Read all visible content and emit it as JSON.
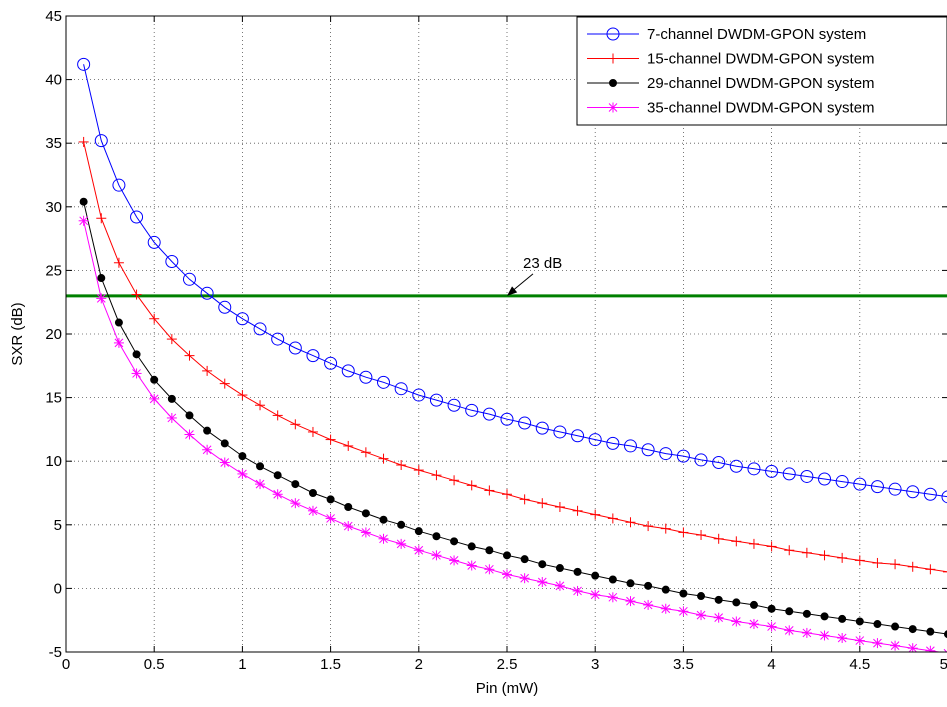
{
  "chart_data": {
    "type": "line",
    "title": "",
    "xlabel": "Pin (mW)",
    "ylabel": "SXR (dB)",
    "xlim": [
      0,
      5
    ],
    "ylim": [
      -5,
      45
    ],
    "xticks": [
      0,
      0.5,
      1,
      1.5,
      2,
      2.5,
      3,
      3.5,
      4,
      4.5,
      5
    ],
    "xtick_labels": [
      "0",
      "0.5",
      "1",
      "1.5",
      "2",
      "2.5",
      "3",
      "3.5",
      "4",
      "4.5",
      "5"
    ],
    "yticks": [
      -5,
      0,
      5,
      10,
      15,
      20,
      25,
      30,
      35,
      40,
      45
    ],
    "ytick_labels": [
      "-5",
      "0",
      "5",
      "10",
      "15",
      "20",
      "25",
      "30",
      "35",
      "40",
      "45"
    ],
    "grid": "dotted",
    "legend_position": "top-right",
    "x": [
      0.1,
      0.2,
      0.3,
      0.4,
      0.5,
      0.6,
      0.7,
      0.8,
      0.9,
      1.0,
      1.1,
      1.2,
      1.3,
      1.4,
      1.5,
      1.6,
      1.7,
      1.8,
      1.9,
      2.0,
      2.1,
      2.2,
      2.3,
      2.4,
      2.5,
      2.6,
      2.7,
      2.8,
      2.9,
      3.0,
      3.1,
      3.2,
      3.3,
      3.4,
      3.5,
      3.6,
      3.7,
      3.8,
      3.9,
      4.0,
      4.1,
      4.2,
      4.3,
      4.4,
      4.5,
      4.6,
      4.7,
      4.8,
      4.9,
      5.0
    ],
    "series": [
      {
        "name": "7-channel DWDM-GPON system",
        "color": "#0000ff",
        "marker": "circle",
        "values": [
          41.2,
          35.2,
          31.7,
          29.2,
          27.2,
          25.7,
          24.3,
          23.2,
          22.1,
          21.2,
          20.4,
          19.6,
          18.9,
          18.3,
          17.7,
          17.1,
          16.6,
          16.2,
          15.7,
          15.2,
          14.8,
          14.4,
          14.0,
          13.7,
          13.3,
          13.0,
          12.6,
          12.3,
          12.0,
          11.7,
          11.4,
          11.2,
          10.9,
          10.6,
          10.4,
          10.1,
          9.9,
          9.6,
          9.4,
          9.2,
          9.0,
          8.8,
          8.6,
          8.4,
          8.2,
          8.0,
          7.8,
          7.6,
          7.4,
          7.2
        ]
      },
      {
        "name": "15-channel DWDM-GPON system",
        "color": "#ff0000",
        "marker": "plus",
        "values": [
          35.1,
          29.1,
          25.6,
          23.1,
          21.2,
          19.6,
          18.3,
          17.1,
          16.1,
          15.2,
          14.4,
          13.6,
          12.9,
          12.3,
          11.7,
          11.2,
          10.7,
          10.2,
          9.7,
          9.3,
          8.9,
          8.5,
          8.1,
          7.7,
          7.4,
          7.0,
          6.7,
          6.4,
          6.1,
          5.8,
          5.5,
          5.2,
          4.9,
          4.7,
          4.4,
          4.2,
          3.9,
          3.7,
          3.5,
          3.3,
          3.0,
          2.8,
          2.6,
          2.4,
          2.2,
          2.0,
          1.9,
          1.7,
          1.5,
          1.3
        ]
      },
      {
        "name": "29-channel DWDM-GPON system",
        "color": "#000000",
        "marker": "dot",
        "values": [
          30.4,
          24.4,
          20.9,
          18.4,
          16.4,
          14.9,
          13.6,
          12.4,
          11.4,
          10.4,
          9.6,
          8.9,
          8.2,
          7.5,
          7.0,
          6.4,
          5.9,
          5.4,
          5.0,
          4.5,
          4.1,
          3.7,
          3.3,
          3.0,
          2.6,
          2.3,
          1.9,
          1.6,
          1.3,
          1.0,
          0.7,
          0.4,
          0.2,
          -0.1,
          -0.4,
          -0.6,
          -0.9,
          -1.1,
          -1.3,
          -1.6,
          -1.8,
          -2.0,
          -2.2,
          -2.4,
          -2.6,
          -2.8,
          -3.0,
          -3.2,
          -3.4,
          -3.6
        ]
      },
      {
        "name": "35-channel DWDM-GPON system",
        "color": "#ff00ff",
        "marker": "star",
        "values": [
          28.9,
          22.8,
          19.3,
          16.9,
          14.9,
          13.4,
          12.1,
          10.9,
          9.9,
          9.0,
          8.2,
          7.4,
          6.7,
          6.1,
          5.5,
          4.9,
          4.4,
          3.9,
          3.5,
          3.0,
          2.6,
          2.2,
          1.8,
          1.5,
          1.1,
          0.8,
          0.5,
          0.2,
          -0.2,
          -0.5,
          -0.7,
          -1.0,
          -1.3,
          -1.6,
          -1.8,
          -2.1,
          -2.3,
          -2.6,
          -2.8,
          -3.0,
          -3.3,
          -3.5,
          -3.7,
          -3.9,
          -4.1,
          -4.3,
          -4.5,
          -4.7,
          -4.9,
          -5.1
        ]
      }
    ],
    "reference_line": {
      "y": 23,
      "color": "#008000"
    },
    "annotation": {
      "text": "23 dB",
      "arrow_to": [
        2.5,
        23
      ]
    }
  }
}
